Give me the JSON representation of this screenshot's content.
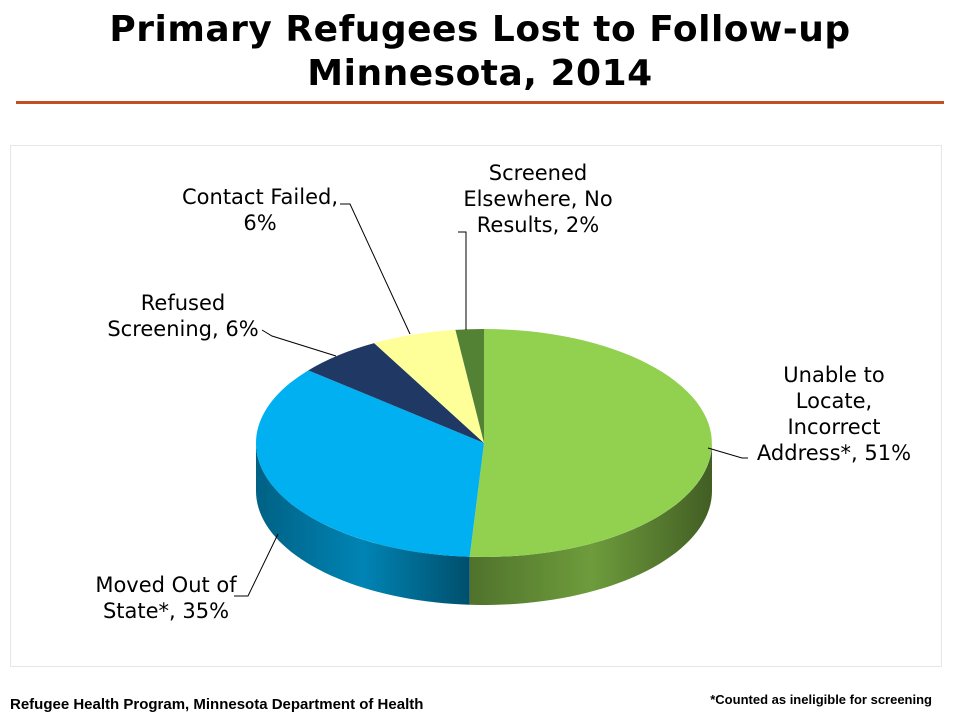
{
  "header": {
    "title_line1": "Primary Refugees Lost to Follow-up",
    "title_line2": "Minnesota, 2014"
  },
  "footer": {
    "source": "Refugee Health Program, Minnesota Department of Health",
    "note": "*Counted as ineligible for screening"
  },
  "chart_data": {
    "type": "pie",
    "style": "3d",
    "title": "Primary Refugees Lost to Follow-up Minnesota, 2014",
    "slices": [
      {
        "label_lines": [
          "Unable to",
          "Locate,",
          "Incorrect",
          "Address*, 51%"
        ],
        "value": 51,
        "color": "#92d050"
      },
      {
        "label_lines": [
          "Moved Out of",
          "State*, 35%"
        ],
        "value": 35,
        "color": "#00b0f0"
      },
      {
        "label_lines": [
          "Refused",
          "Screening, 6%"
        ],
        "value": 6,
        "color": "#1f3864"
      },
      {
        "label_lines": [
          "Contact Failed,",
          "6%"
        ],
        "value": 6,
        "color": "#ffff99"
      },
      {
        "label_lines": [
          "Screened",
          "Elsewhere, No",
          "Results, 2%"
        ],
        "value": 2,
        "color": "#548235"
      }
    ]
  }
}
